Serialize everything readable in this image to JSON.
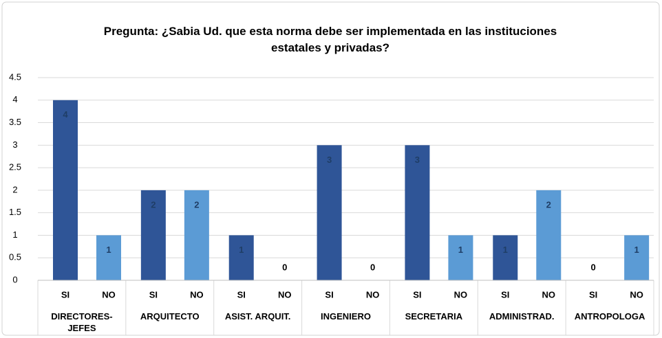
{
  "chart_data": {
    "type": "bar",
    "title": "Pregunta: ¿Sabia Ud. que esta norma debe ser implementada en las instituciones estatales y privadas?",
    "categories": [
      "DIRECTORES-JEFES",
      "ARQUITECTO",
      "ASIST. ARQUIT.",
      "INGENIERO",
      "SECRETARIA",
      "ADMINISTRAD.",
      "ANTROPOLOGA"
    ],
    "series": [
      {
        "name": "SI",
        "color": "#2f5597",
        "values": [
          4,
          2,
          1,
          3,
          3,
          1,
          0
        ]
      },
      {
        "name": "NO",
        "color": "#5b9bd5",
        "values": [
          1,
          2,
          0,
          0,
          1,
          2,
          1
        ]
      }
    ],
    "ylim": [
      0,
      4.5
    ],
    "yticks": [
      0,
      0.5,
      1,
      1.5,
      2,
      2.5,
      3,
      3.5,
      4,
      4.5
    ],
    "grid": true
  }
}
